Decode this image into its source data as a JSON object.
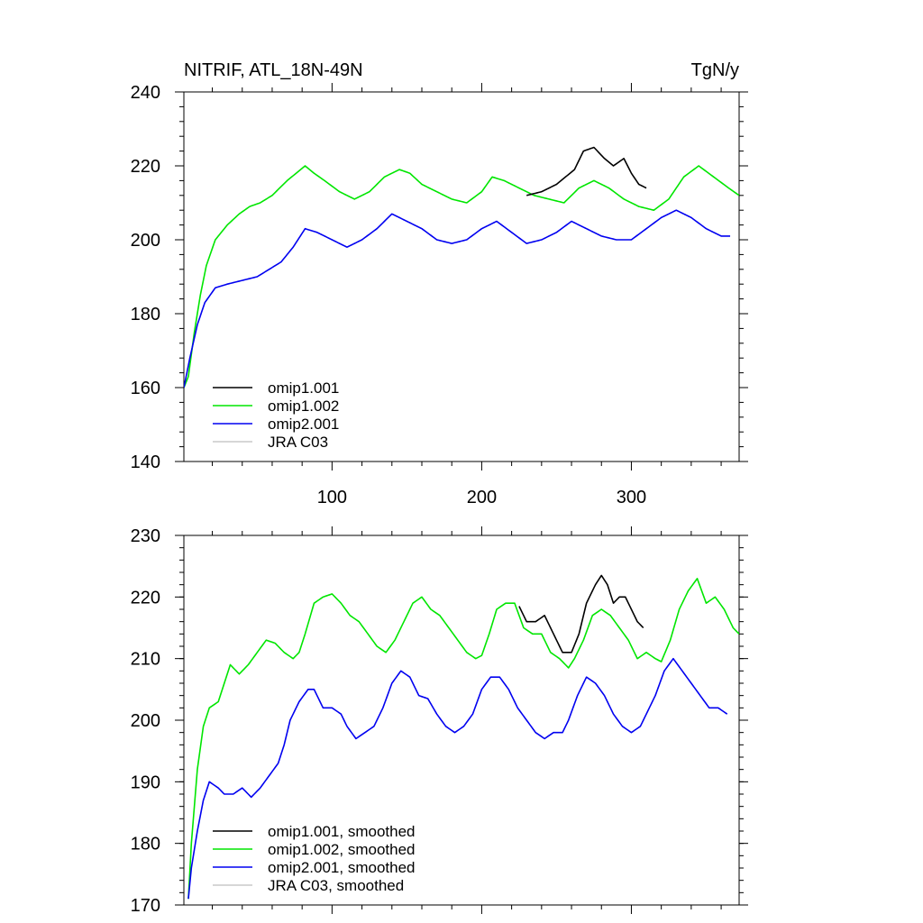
{
  "top_panel": {
    "left_title": "NITRIF, ATL_18N-49N",
    "right_title": "TgN/y"
  },
  "chart_data": [
    {
      "type": "line",
      "xlim": [
        1,
        372
      ],
      "ylim": [
        140,
        240
      ],
      "yticks": [
        140,
        160,
        180,
        200,
        220,
        240
      ],
      "xticks": [
        100,
        200,
        300
      ],
      "xticklabels_visible": true,
      "legend_position": "bottom-left",
      "series": [
        {
          "name": "omip1.001",
          "color": "#000000",
          "anchors": [
            [
              230,
              212
            ],
            [
              240,
              213
            ],
            [
              250,
              215
            ],
            [
              262,
              219
            ],
            [
              268,
              224
            ],
            [
              275,
              225
            ],
            [
              282,
              222
            ],
            [
              288,
              220
            ],
            [
              295,
              222
            ],
            [
              300,
              218
            ],
            [
              305,
              215
            ],
            [
              310,
              214
            ]
          ]
        },
        {
          "name": "omip1.002",
          "color": "#00e600",
          "anchors": [
            [
              1,
              160
            ],
            [
              4,
              163
            ],
            [
              8,
              175
            ],
            [
              12,
              185
            ],
            [
              16,
              193
            ],
            [
              22,
              200
            ],
            [
              30,
              204
            ],
            [
              38,
              207
            ],
            [
              45,
              209
            ],
            [
              52,
              210
            ],
            [
              60,
              212
            ],
            [
              70,
              216
            ],
            [
              82,
              220
            ],
            [
              88,
              218
            ],
            [
              95,
              216
            ],
            [
              105,
              213
            ],
            [
              115,
              211
            ],
            [
              125,
              213
            ],
            [
              135,
              217
            ],
            [
              145,
              219
            ],
            [
              152,
              218
            ],
            [
              160,
              215
            ],
            [
              170,
              213
            ],
            [
              180,
              211
            ],
            [
              190,
              210
            ],
            [
              200,
              213
            ],
            [
              207,
              217
            ],
            [
              215,
              216
            ],
            [
              225,
              214
            ],
            [
              235,
              212
            ],
            [
              245,
              211
            ],
            [
              255,
              210
            ],
            [
              265,
              214
            ],
            [
              275,
              216
            ],
            [
              285,
              214
            ],
            [
              295,
              211
            ],
            [
              305,
              209
            ],
            [
              315,
              208
            ],
            [
              325,
              211
            ],
            [
              335,
              217
            ],
            [
              345,
              220
            ],
            [
              355,
              217
            ],
            [
              365,
              214
            ],
            [
              372,
              212
            ]
          ]
        },
        {
          "name": "omip2.001",
          "color": "#0000f0",
          "anchors": [
            [
              1,
              160
            ],
            [
              5,
              168
            ],
            [
              10,
              177
            ],
            [
              15,
              183
            ],
            [
              22,
              187
            ],
            [
              30,
              188
            ],
            [
              40,
              189
            ],
            [
              50,
              190
            ],
            [
              58,
              192
            ],
            [
              66,
              194
            ],
            [
              74,
              198
            ],
            [
              82,
              203
            ],
            [
              90,
              202
            ],
            [
              100,
              200
            ],
            [
              110,
              198
            ],
            [
              120,
              200
            ],
            [
              130,
              203
            ],
            [
              140,
              207
            ],
            [
              150,
              205
            ],
            [
              160,
              203
            ],
            [
              170,
              200
            ],
            [
              180,
              199
            ],
            [
              190,
              200
            ],
            [
              200,
              203
            ],
            [
              210,
              205
            ],
            [
              220,
              202
            ],
            [
              230,
              199
            ],
            [
              240,
              200
            ],
            [
              250,
              202
            ],
            [
              260,
              205
            ],
            [
              270,
              203
            ],
            [
              280,
              201
            ],
            [
              290,
              200
            ],
            [
              300,
              200
            ],
            [
              310,
              203
            ],
            [
              320,
              206
            ],
            [
              330,
              208
            ],
            [
              340,
              206
            ],
            [
              350,
              203
            ],
            [
              360,
              201
            ],
            [
              366,
              201
            ]
          ]
        },
        {
          "name": "JRA C03",
          "color": "#c8c8c8",
          "anchors": []
        }
      ]
    },
    {
      "type": "line",
      "xlim": [
        1,
        372
      ],
      "ylim": [
        170,
        230
      ],
      "yticks": [
        170,
        180,
        190,
        200,
        210,
        220,
        230
      ],
      "xticks": [
        100,
        200,
        300
      ],
      "xticklabels_visible": false,
      "legend_position": "bottom-left",
      "series": [
        {
          "name": "omip1.001, smoothed",
          "color": "#000000",
          "anchors": [
            [
              225,
              218.5
            ],
            [
              230,
              216
            ],
            [
              236,
              216
            ],
            [
              242,
              217
            ],
            [
              248,
              214
            ],
            [
              254,
              211
            ],
            [
              260,
              211
            ],
            [
              265,
              214
            ],
            [
              270,
              219
            ],
            [
              276,
              222
            ],
            [
              280,
              223.5
            ],
            [
              284,
              222
            ],
            [
              288,
              219
            ],
            [
              292,
              220
            ],
            [
              296,
              220
            ],
            [
              300,
              218
            ],
            [
              304,
              216
            ],
            [
              308,
              215
            ]
          ]
        },
        {
          "name": "omip1.002, smoothed",
          "color": "#00e600",
          "anchors": [
            [
              4,
              171
            ],
            [
              6,
              180
            ],
            [
              10,
              192
            ],
            [
              14,
              199
            ],
            [
              18,
              202
            ],
            [
              24,
              203
            ],
            [
              28,
              206
            ],
            [
              32,
              209
            ],
            [
              38,
              207.5
            ],
            [
              44,
              209
            ],
            [
              50,
              211
            ],
            [
              56,
              213
            ],
            [
              62,
              212.5
            ],
            [
              68,
              211
            ],
            [
              74,
              210
            ],
            [
              78,
              211
            ],
            [
              82,
              214
            ],
            [
              88,
              219
            ],
            [
              94,
              220
            ],
            [
              100,
              220.5
            ],
            [
              106,
              219
            ],
            [
              112,
              217
            ],
            [
              118,
              216
            ],
            [
              124,
              214
            ],
            [
              130,
              212
            ],
            [
              136,
              211
            ],
            [
              142,
              213
            ],
            [
              148,
              216
            ],
            [
              154,
              219
            ],
            [
              160,
              220
            ],
            [
              166,
              218
            ],
            [
              172,
              217
            ],
            [
              178,
              215
            ],
            [
              184,
              213
            ],
            [
              190,
              211
            ],
            [
              196,
              210
            ],
            [
              200,
              210.5
            ],
            [
              205,
              214
            ],
            [
              210,
              218
            ],
            [
              216,
              219
            ],
            [
              222,
              219
            ],
            [
              228,
              215
            ],
            [
              234,
              214
            ],
            [
              240,
              214
            ],
            [
              246,
              211
            ],
            [
              252,
              210
            ],
            [
              258,
              208.5
            ],
            [
              262,
              210
            ],
            [
              268,
              213
            ],
            [
              274,
              217
            ],
            [
              280,
              218
            ],
            [
              286,
              217
            ],
            [
              292,
              215
            ],
            [
              298,
              213
            ],
            [
              304,
              210
            ],
            [
              310,
              211
            ],
            [
              316,
              210
            ],
            [
              320,
              209.5
            ],
            [
              326,
              213
            ],
            [
              332,
              218
            ],
            [
              338,
              221
            ],
            [
              344,
              223
            ],
            [
              350,
              219
            ],
            [
              356,
              220
            ],
            [
              362,
              218
            ],
            [
              368,
              215
            ],
            [
              372,
              214
            ]
          ]
        },
        {
          "name": "omip2.001, smoothed",
          "color": "#0000f0",
          "anchors": [
            [
              4,
              171
            ],
            [
              6,
              176
            ],
            [
              10,
              182
            ],
            [
              14,
              187
            ],
            [
              18,
              190
            ],
            [
              24,
              189
            ],
            [
              28,
              188
            ],
            [
              34,
              188
            ],
            [
              40,
              189
            ],
            [
              46,
              187.5
            ],
            [
              52,
              189
            ],
            [
              58,
              191
            ],
            [
              64,
              193
            ],
            [
              68,
              196
            ],
            [
              72,
              200
            ],
            [
              78,
              203
            ],
            [
              84,
              205
            ],
            [
              88,
              205
            ],
            [
              94,
              202
            ],
            [
              100,
              202
            ],
            [
              106,
              201
            ],
            [
              110,
              199
            ],
            [
              116,
              197
            ],
            [
              122,
              198
            ],
            [
              128,
              199
            ],
            [
              134,
              202
            ],
            [
              140,
              206
            ],
            [
              146,
              208
            ],
            [
              152,
              207
            ],
            [
              158,
              204
            ],
            [
              164,
              203.5
            ],
            [
              170,
              201
            ],
            [
              176,
              199
            ],
            [
              182,
              198
            ],
            [
              188,
              199
            ],
            [
              194,
              201
            ],
            [
              200,
              205
            ],
            [
              206,
              207
            ],
            [
              212,
              207
            ],
            [
              218,
              205
            ],
            [
              224,
              202
            ],
            [
              230,
              200
            ],
            [
              236,
              198
            ],
            [
              242,
              197
            ],
            [
              248,
              198
            ],
            [
              254,
              198
            ],
            [
              258,
              200
            ],
            [
              264,
              204
            ],
            [
              270,
              207
            ],
            [
              276,
              206
            ],
            [
              282,
              204
            ],
            [
              288,
              201
            ],
            [
              294,
              199
            ],
            [
              300,
              198
            ],
            [
              306,
              199
            ],
            [
              310,
              201
            ],
            [
              316,
              204
            ],
            [
              322,
              208
            ],
            [
              328,
              210
            ],
            [
              334,
              208
            ],
            [
              340,
              206
            ],
            [
              346,
              204
            ],
            [
              352,
              202
            ],
            [
              358,
              202
            ],
            [
              364,
              201
            ]
          ]
        },
        {
          "name": "JRA C03, smoothed",
          "color": "#c8c8c8",
          "anchors": []
        }
      ]
    }
  ]
}
